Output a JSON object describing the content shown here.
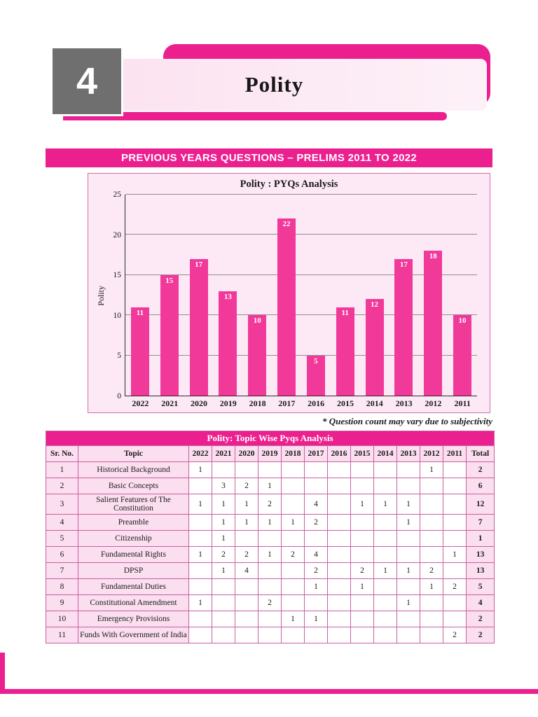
{
  "header": {
    "chapter_number": "4",
    "chapter_title": "Polity",
    "banner": "PREVIOUS YEARS QUESTIONS – PRELIMS 2011 TO 2022"
  },
  "note": "* Question count may vary due to subjectivity",
  "colors": {
    "accent_pink": "#EC1F8F",
    "bar_pink": "#F1399A",
    "light_pink_cell": "#FBDEEF",
    "chart_background": "#FDE9F5",
    "chapter_box_gray": "#6f6f6f"
  },
  "chart_data": {
    "type": "bar",
    "title": "Polity : PYQs Analysis",
    "xlabel": "",
    "ylabel": "Polity",
    "categories": [
      "2022",
      "2021",
      "2020",
      "2019",
      "2018",
      "2017",
      "2016",
      "2015",
      "2014",
      "2013",
      "2012",
      "2011"
    ],
    "values": [
      11,
      15,
      17,
      13,
      10,
      22,
      5,
      11,
      12,
      17,
      18,
      10
    ],
    "ylim": [
      0,
      25
    ],
    "yticks": [
      0,
      5,
      10,
      15,
      20,
      25
    ],
    "grid": true,
    "legend": "none",
    "bar_color": "#F1399A"
  },
  "table": {
    "title": "Polity: Topic Wise Pyqs Analysis",
    "headers": [
      "Sr. No.",
      "Topic",
      "2022",
      "2021",
      "2020",
      "2019",
      "2018",
      "2017",
      "2016",
      "2015",
      "2014",
      "2013",
      "2012",
      "2011",
      "Total"
    ],
    "rows": [
      [
        "1",
        "Historical Background",
        "1",
        "",
        "",
        "",
        "",
        "",
        "",
        "",
        "",
        "",
        "1",
        "",
        "2"
      ],
      [
        "2",
        "Basic Concepts",
        "",
        "3",
        "2",
        "1",
        "",
        "",
        "",
        "",
        "",
        "",
        "",
        "",
        "6"
      ],
      [
        "3",
        "Salient Features of The Constitution",
        "1",
        "1",
        "1",
        "2",
        "",
        "4",
        "",
        "1",
        "1",
        "1",
        "",
        "",
        "12"
      ],
      [
        "4",
        "Preamble",
        "",
        "1",
        "1",
        "1",
        "1",
        "2",
        "",
        "",
        "",
        "1",
        "",
        "",
        "7"
      ],
      [
        "5",
        "Citizenship",
        "",
        "1",
        "",
        "",
        "",
        "",
        "",
        "",
        "",
        "",
        "",
        "",
        "1"
      ],
      [
        "6",
        "Fundamental Rights",
        "1",
        "2",
        "2",
        "1",
        "2",
        "4",
        "",
        "",
        "",
        "",
        "",
        "1",
        "13"
      ],
      [
        "7",
        "DPSP",
        "",
        "1",
        "4",
        "",
        "",
        "2",
        "",
        "2",
        "1",
        "1",
        "2",
        "",
        "13"
      ],
      [
        "8",
        "Fundamental Duties",
        "",
        "",
        "",
        "",
        "",
        "1",
        "",
        "1",
        "",
        "",
        "1",
        "2",
        "5"
      ],
      [
        "9",
        "Constitutional Amendment",
        "1",
        "",
        "",
        "2",
        "",
        "",
        "",
        "",
        "",
        "1",
        "",
        "",
        "4"
      ],
      [
        "10",
        "Emergency Provisions",
        "",
        "",
        "",
        "",
        "1",
        "1",
        "",
        "",
        "",
        "",
        "",
        "",
        "2"
      ],
      [
        "11",
        "Funds With Government of India",
        "",
        "",
        "",
        "",
        "",
        "",
        "",
        "",
        "",
        "",
        "",
        "2",
        "2"
      ]
    ]
  }
}
